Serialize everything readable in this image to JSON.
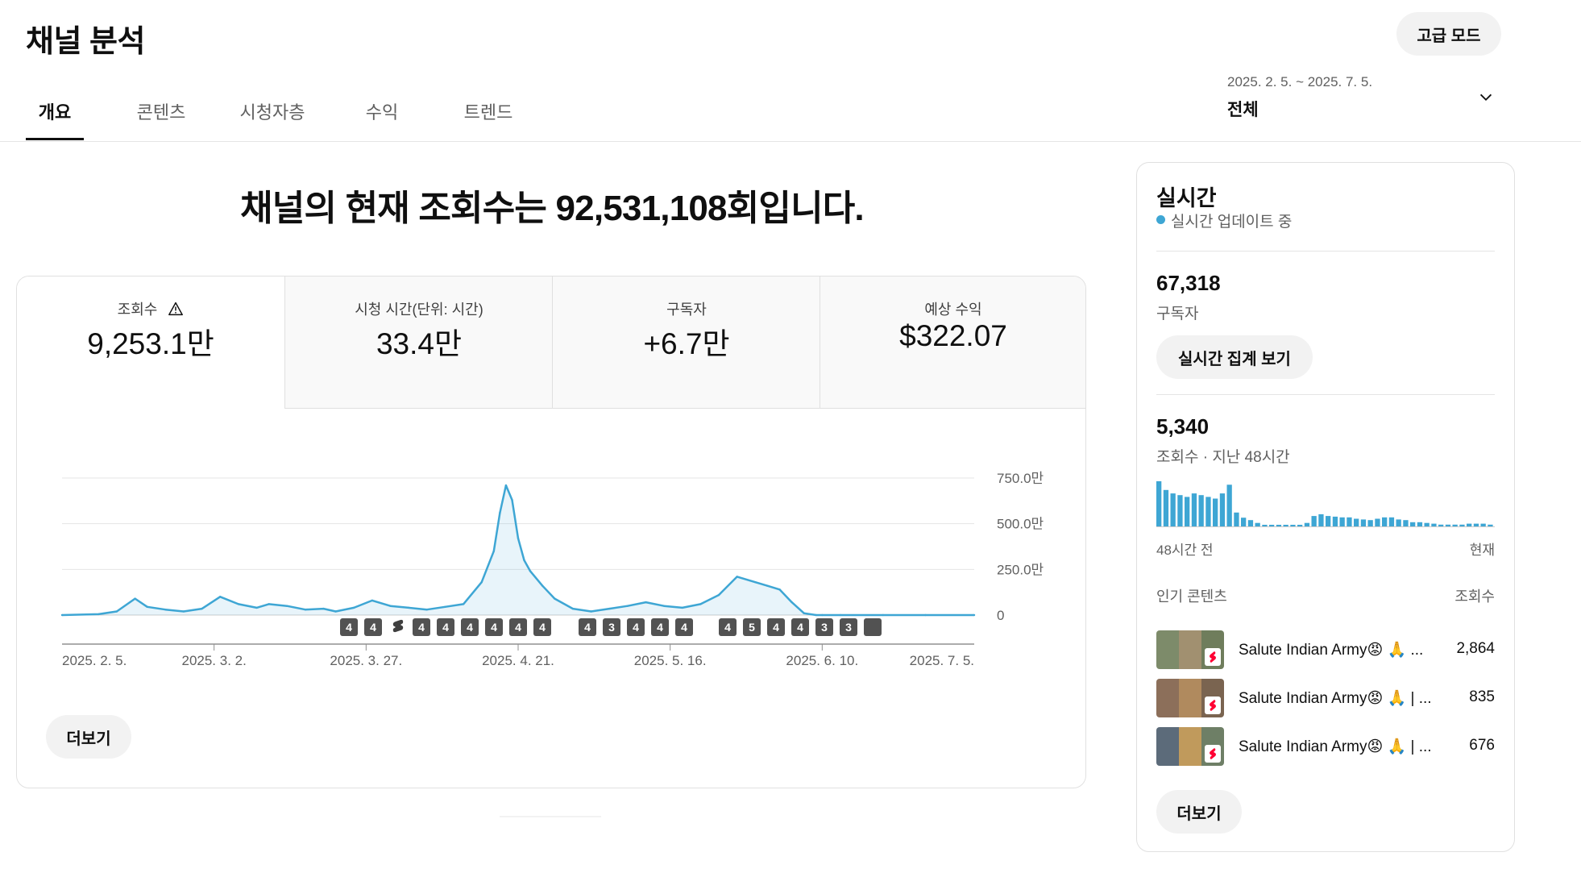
{
  "header": {
    "title": "채널 분석",
    "advanced_mode": "고급 모드",
    "tabs": [
      {
        "label": "개요",
        "active": true
      },
      {
        "label": "콘텐츠",
        "active": false
      },
      {
        "label": "시청자층",
        "active": false
      },
      {
        "label": "수익",
        "active": false
      },
      {
        "label": "트렌드",
        "active": false
      }
    ],
    "date_range": "2025. 2. 5. ~ 2025. 7. 5.",
    "date_label": "전체"
  },
  "headline": "채널의 현재 조회수는 92,531,108회입니다.",
  "metrics": [
    {
      "label": "조회수",
      "value": "9,253.1만",
      "warning_icon": "warning-icon"
    },
    {
      "label": "시청 시간(단위: 시간)",
      "value": "33.4만"
    },
    {
      "label": "구독자",
      "value": "+6.7만"
    },
    {
      "label": "예상 수익",
      "value": "$322.07"
    }
  ],
  "chart_data": {
    "type": "area",
    "x_ticks": [
      "2025. 2. 5.",
      "2025. 3. 2.",
      "2025. 3. 27.",
      "2025. 4. 21.",
      "2025. 5. 16.",
      "2025. 6. 10.",
      "2025. 7. 5."
    ],
    "y_ticks": [
      "750.0만",
      "500.0만",
      "250.0만",
      "0"
    ],
    "ylim": [
      0,
      7500000
    ],
    "color": "#3ea6d4",
    "x": [
      "2025-02-05",
      "2025-02-11",
      "2025-02-14",
      "2025-02-17",
      "2025-02-19",
      "2025-02-22",
      "2025-02-25",
      "2025-02-28",
      "2025-03-03",
      "2025-03-06",
      "2025-03-09",
      "2025-03-11",
      "2025-03-14",
      "2025-03-17",
      "2025-03-20",
      "2025-03-22",
      "2025-03-25",
      "2025-03-28",
      "2025-03-31",
      "2025-04-03",
      "2025-04-06",
      "2025-04-09",
      "2025-04-12",
      "2025-04-15",
      "2025-04-17",
      "2025-04-18",
      "2025-04-19",
      "2025-04-20",
      "2025-04-21",
      "2025-04-22",
      "2025-04-23",
      "2025-04-25",
      "2025-04-27",
      "2025-04-30",
      "2025-05-03",
      "2025-05-06",
      "2025-05-09",
      "2025-05-12",
      "2025-05-15",
      "2025-05-18",
      "2025-05-21",
      "2025-05-24",
      "2025-05-27",
      "2025-05-30",
      "2025-06-01",
      "2025-06-03",
      "2025-06-05",
      "2025-06-07",
      "2025-06-09",
      "2025-06-10",
      "2025-06-13",
      "2025-06-20",
      "2025-06-27",
      "2025-07-05"
    ],
    "values": [
      0,
      50000,
      200000,
      900000,
      450000,
      300000,
      200000,
      350000,
      1000000,
      600000,
      400000,
      600000,
      500000,
      300000,
      350000,
      200000,
      400000,
      800000,
      500000,
      400000,
      300000,
      450000,
      600000,
      1800000,
      3500000,
      5600000,
      7100000,
      6300000,
      4200000,
      3000000,
      2400000,
      1600000,
      900000,
      350000,
      200000,
      350000,
      500000,
      700000,
      500000,
      400000,
      600000,
      1100000,
      2100000,
      1800000,
      1600000,
      1400000,
      700000,
      100000,
      0,
      0,
      0,
      0,
      0,
      0
    ],
    "markers": [
      "4",
      "4",
      "shorts",
      "4",
      "4",
      "4",
      "4",
      "4",
      "4",
      "4",
      "3",
      "4",
      "4",
      "4",
      "4",
      "5",
      "4",
      "4",
      "3",
      "3"
    ]
  },
  "more_button": "더보기",
  "realtime": {
    "title": "실시간",
    "status": "실시간 업데이트 중",
    "subscribers": "67,318",
    "subscribers_label": "구독자",
    "view_count_button": "실시간 집계 보기",
    "views": "5,340",
    "views_label": "조회수 · 지난 48시간",
    "hourly_views": [
      130,
      105,
      95,
      90,
      85,
      95,
      90,
      85,
      80,
      95,
      120,
      40,
      25,
      18,
      10,
      3,
      3,
      3,
      3,
      3,
      3,
      10,
      30,
      35,
      30,
      28,
      26,
      26,
      22,
      20,
      18,
      22,
      26,
      26,
      20,
      18,
      12,
      12,
      10,
      8,
      5,
      5,
      5,
      5,
      8,
      8,
      8,
      5
    ],
    "axis_start": "48시간 전",
    "axis_end": "현재",
    "top_content_label": "인기 콘텐츠",
    "top_content_col": "조회수",
    "top_content": [
      {
        "title": "Salute Indian Army😡 🙏 ...",
        "views": "2,864"
      },
      {
        "title": "Salute Indian Army😡 🙏 | ...",
        "views": "835"
      },
      {
        "title": "Salute Indian Army😡 🙏 | ...",
        "views": "676"
      }
    ],
    "more_button": "더보기"
  }
}
